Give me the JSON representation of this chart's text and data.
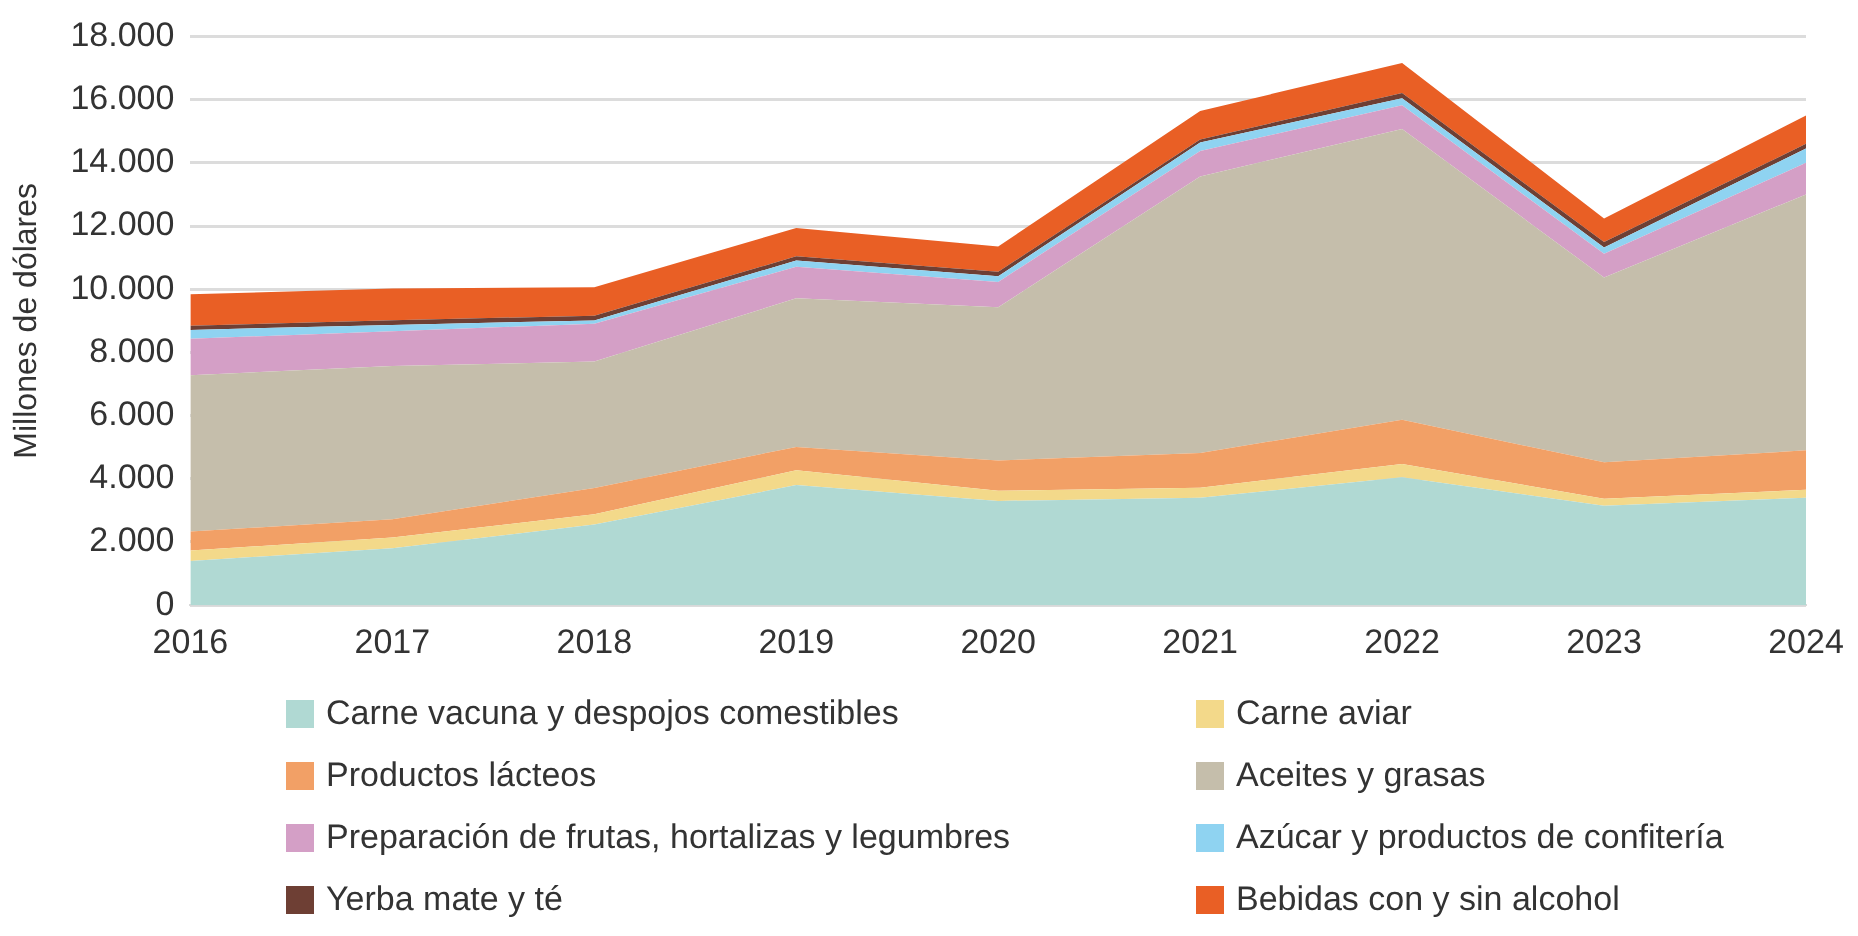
{
  "chart_data": {
    "type": "area",
    "stacked": true,
    "ylabel": "Millones de dólares",
    "categories": [
      "2016",
      "2017",
      "2018",
      "2019",
      "2020",
      "2021",
      "2022",
      "2023",
      "2024"
    ],
    "series": [
      {
        "name": "Carne vacuna y despojos comestibles",
        "color": "#b0d9d3",
        "values": [
          1400,
          1800,
          2550,
          3800,
          3300,
          3400,
          4050,
          3150,
          3400
        ]
      },
      {
        "name": "Carne aviar",
        "color": "#f3d98a",
        "values": [
          330,
          340,
          330,
          470,
          320,
          320,
          420,
          220,
          250
        ]
      },
      {
        "name": "Productos lácteos",
        "color": "#f2a066",
        "values": [
          600,
          580,
          830,
          740,
          960,
          1100,
          1400,
          1150,
          1250
        ]
      },
      {
        "name": "Aceites y grasas",
        "color": "#c5beab",
        "values": [
          4950,
          4850,
          4000,
          4700,
          4850,
          8750,
          9200,
          5850,
          8100
        ]
      },
      {
        "name": "Preparación de frutas, hortalizas y legumbres",
        "color": "#d49fc6",
        "values": [
          1150,
          1100,
          1200,
          1000,
          800,
          800,
          750,
          750,
          1000
        ]
      },
      {
        "name": "Azúcar y productos de confitería",
        "color": "#8fd3f1",
        "values": [
          280,
          200,
          100,
          200,
          180,
          270,
          220,
          200,
          450
        ]
      },
      {
        "name": "Yerba mate y té",
        "color": "#6e3f34",
        "values": [
          130,
          150,
          150,
          130,
          140,
          100,
          170,
          170,
          150
        ]
      },
      {
        "name": "Bebidas con y sin alcohol",
        "color": "#e95f25",
        "values": [
          1000,
          1000,
          900,
          900,
          800,
          900,
          950,
          750,
          900
        ]
      }
    ],
    "ylim": [
      0,
      18000
    ],
    "yticks": [
      {
        "value": 0,
        "label": "0"
      },
      {
        "value": 2000,
        "label": "2.000"
      },
      {
        "value": 4000,
        "label": "4.000"
      },
      {
        "value": 6000,
        "label": "6.000"
      },
      {
        "value": 8000,
        "label": "8.000"
      },
      {
        "value": 10000,
        "label": "10.000"
      },
      {
        "value": 12000,
        "label": "12.000"
      },
      {
        "value": 14000,
        "label": "14.000"
      },
      {
        "value": 16000,
        "label": "16.000"
      },
      {
        "value": 18000,
        "label": "18.000"
      }
    ],
    "grid": "y",
    "legend": "bottom"
  }
}
